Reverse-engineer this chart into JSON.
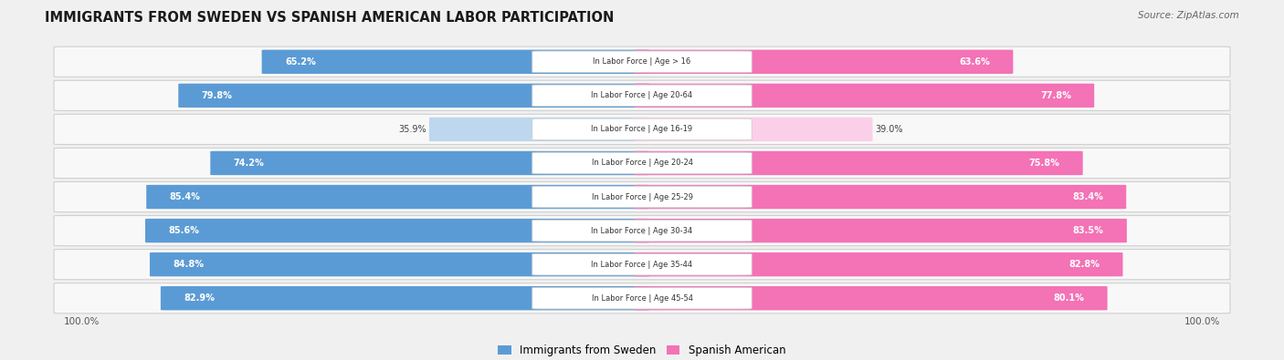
{
  "title": "IMMIGRANTS FROM SWEDEN VS SPANISH AMERICAN LABOR PARTICIPATION",
  "source": "Source: ZipAtlas.com",
  "categories": [
    "In Labor Force | Age > 16",
    "In Labor Force | Age 20-64",
    "In Labor Force | Age 16-19",
    "In Labor Force | Age 20-24",
    "In Labor Force | Age 25-29",
    "In Labor Force | Age 30-34",
    "In Labor Force | Age 35-44",
    "In Labor Force | Age 45-54"
  ],
  "sweden_values": [
    65.2,
    79.8,
    35.9,
    74.2,
    85.4,
    85.6,
    84.8,
    82.9
  ],
  "spanish_values": [
    63.6,
    77.8,
    39.0,
    75.8,
    83.4,
    83.5,
    82.8,
    80.1
  ],
  "sweden_color_strong": "#5b9bd5",
  "sweden_color_light": "#bdd7ee",
  "spanish_color_strong": "#f472b6",
  "spanish_color_light": "#fbcfe8",
  "row_bg": "#f2f2f2",
  "row_border": "#d8d8d8",
  "bg_color": "#f0f0f0",
  "threshold": 50
}
